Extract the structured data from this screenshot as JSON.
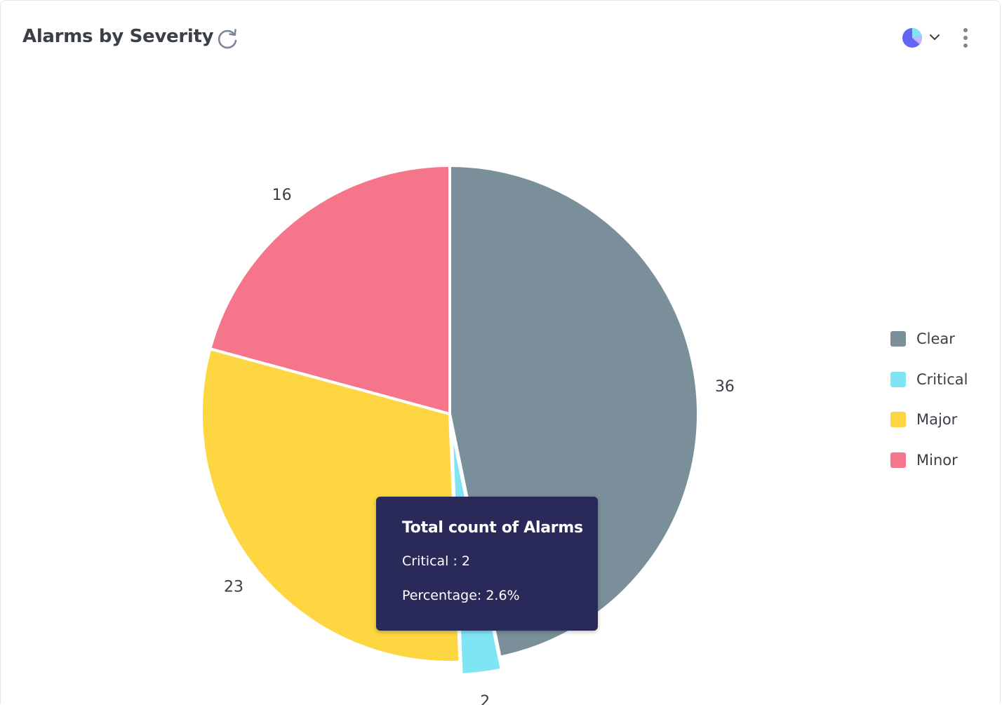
{
  "header": {
    "title": "Alarms by Severity",
    "refresh_icon": "refresh-icon",
    "chart_type_icon": "pie-chart-icon",
    "dropdown_icon": "chevron-down-icon",
    "more_icon": "more-vertical-icon"
  },
  "chart_data": {
    "type": "pie",
    "categories": [
      "Clear",
      "Critical",
      "Major",
      "Minor"
    ],
    "values": [
      36,
      2,
      23,
      16
    ],
    "colors": [
      "#7a8f9a",
      "#7fe5f5",
      "#fdd641",
      "#f5758a"
    ],
    "legend_position": "right",
    "exploded_slice": "Critical"
  },
  "legend": {
    "items": [
      {
        "label": "Clear",
        "color": "#7a8f9a"
      },
      {
        "label": "Critical",
        "color": "#7fe5f5"
      },
      {
        "label": "Major",
        "color": "#fdd641"
      },
      {
        "label": "Minor",
        "color": "#f5758a"
      }
    ]
  },
  "tooltip": {
    "title": "Total count of Alarms",
    "series_line": "Critical : 2",
    "percentage_line": "Percentage: 2.6%"
  }
}
